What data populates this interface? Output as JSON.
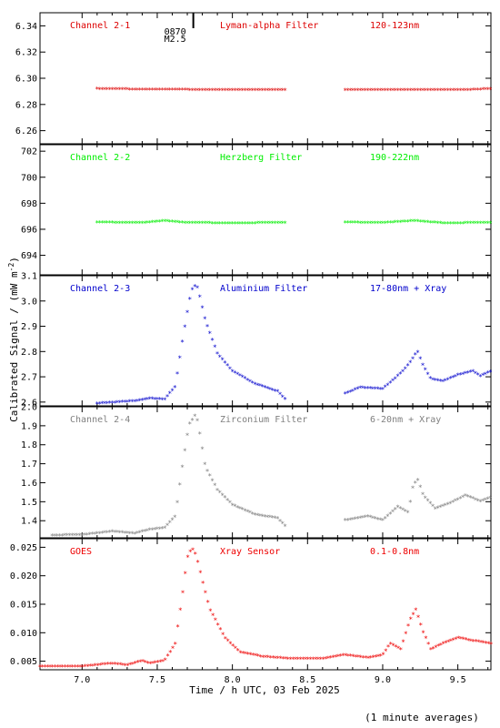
{
  "flare": {
    "id": "0870",
    "class": "M2.5",
    "time": 7.74
  },
  "xlabel": "Time / h UTC, 03 Feb 2025",
  "ylabel": "Calibrated Signal / (mW m",
  "ylabel_sup": "-2",
  "ylabel_close": ")",
  "footnote": "(1 minute averages)",
  "chart_data": [
    {
      "type": "scatter",
      "name": "Channel 2-1",
      "filter": "Lyman-alpha Filter",
      "band": "120-123nm",
      "color": "#dd0000",
      "xlim": [
        6.72,
        9.72
      ],
      "ylim": [
        6.25,
        6.35
      ],
      "yticks": [
        6.26,
        6.28,
        6.3,
        6.32,
        6.34
      ],
      "ytick_labels": [
        "6.26",
        "6.28",
        "6.30",
        "6.32",
        "6.34"
      ],
      "x": [
        7.1,
        7.4,
        7.7,
        8.0,
        8.35,
        8.75,
        9.0,
        9.3,
        9.6,
        9.72
      ],
      "y": [
        6.2915,
        6.291,
        6.2908,
        6.2906,
        6.2905,
        6.2905,
        6.2906,
        6.2905,
        6.2908,
        6.2915
      ]
    },
    {
      "type": "scatter",
      "name": "Channel 2-2",
      "filter": "Herzberg Filter",
      "band": "190-222nm",
      "color": "#00ee00",
      "xlim": [
        6.72,
        9.72
      ],
      "ylim": [
        692.5,
        702.5
      ],
      "yticks": [
        694,
        696,
        698,
        700,
        702
      ],
      "ytick_labels": [
        "694",
        "696",
        "698",
        "700",
        "702"
      ],
      "x": [
        7.1,
        7.4,
        7.55,
        7.7,
        8.0,
        8.35,
        8.75,
        9.0,
        9.22,
        9.4,
        9.72
      ],
      "y": [
        696.48,
        696.45,
        696.6,
        696.45,
        696.42,
        696.45,
        696.48,
        696.45,
        696.6,
        696.42,
        696.45
      ]
    },
    {
      "type": "scatter",
      "name": "Channel 2-3",
      "filter": "Aluminium Filter",
      "band": "17-80nm + Xray",
      "color": "#0000cc",
      "xlim": [
        6.72,
        9.72
      ],
      "ylim": [
        2.585,
        3.1
      ],
      "yticks": [
        2.6,
        2.7,
        2.8,
        2.9,
        3.0,
        3.1
      ],
      "ytick_labels": [
        "2.6",
        "2.7",
        "2.8",
        "2.9",
        "3.0",
        "3.1"
      ],
      "x": [
        7.1,
        7.25,
        7.35,
        7.45,
        7.55,
        7.62,
        7.67,
        7.71,
        7.74,
        7.77,
        7.82,
        7.9,
        8.0,
        8.15,
        8.3,
        8.35,
        8.75,
        8.85,
        9.0,
        9.08,
        9.15,
        9.2,
        9.23,
        9.27,
        9.32,
        9.4,
        9.5,
        9.6,
        9.65,
        9.72
      ],
      "y": [
        2.592,
        2.598,
        2.602,
        2.612,
        2.608,
        2.66,
        2.85,
        2.99,
        3.06,
        3.05,
        2.92,
        2.79,
        2.72,
        2.67,
        2.64,
        2.61,
        2.632,
        2.655,
        2.65,
        2.69,
        2.73,
        2.77,
        2.8,
        2.74,
        2.69,
        2.68,
        2.705,
        2.72,
        2.7,
        2.72
      ]
    },
    {
      "type": "scatter",
      "name": "Channel 2-4",
      "filter": "Zirconium Filter",
      "band": "6-20nm + Xray",
      "color": "#808080",
      "xlim": [
        6.72,
        9.72
      ],
      "ylim": [
        1.31,
        2.0
      ],
      "yticks": [
        1.4,
        1.5,
        1.6,
        1.7,
        1.8,
        1.9,
        2.0
      ],
      "ytick_labels": [
        "1.4",
        "1.5",
        "1.6",
        "1.7",
        "1.8",
        "1.9",
        "2.0"
      ],
      "x": [
        6.8,
        7.0,
        7.2,
        7.35,
        7.45,
        7.55,
        7.62,
        7.67,
        7.71,
        7.75,
        7.77,
        7.82,
        7.9,
        8.0,
        8.15,
        8.3,
        8.35,
        8.75,
        8.9,
        9.0,
        9.1,
        9.17,
        9.2,
        9.23,
        9.27,
        9.35,
        9.45,
        9.55,
        9.65,
        9.72
      ],
      "y": [
        1.32,
        1.322,
        1.34,
        1.33,
        1.35,
        1.36,
        1.42,
        1.7,
        1.9,
        1.95,
        1.92,
        1.68,
        1.56,
        1.48,
        1.43,
        1.41,
        1.37,
        1.4,
        1.42,
        1.4,
        1.47,
        1.44,
        1.57,
        1.62,
        1.53,
        1.46,
        1.49,
        1.53,
        1.5,
        1.52
      ]
    },
    {
      "type": "scatter",
      "name": "GOES",
      "filter": "Xray Sensor",
      "band": "0.1-0.8nm",
      "color": "#ee0000",
      "xlim": [
        6.72,
        9.72
      ],
      "ylim": [
        0.0035,
        0.0265
      ],
      "yticks": [
        0.005,
        0.01,
        0.015,
        0.02,
        0.025
      ],
      "ytick_labels": [
        "0.005",
        "0.010",
        "0.015",
        "0.020",
        "0.025"
      ],
      "x": [
        6.72,
        7.0,
        7.2,
        7.3,
        7.4,
        7.45,
        7.55,
        7.62,
        7.67,
        7.7,
        7.73,
        7.76,
        7.8,
        7.85,
        7.95,
        8.05,
        8.2,
        8.4,
        8.6,
        8.75,
        8.9,
        9.0,
        9.05,
        9.12,
        9.18,
        9.22,
        9.27,
        9.32,
        9.4,
        9.5,
        9.6,
        9.72
      ],
      "y": [
        0.004,
        0.004,
        0.0045,
        0.0042,
        0.005,
        0.0045,
        0.005,
        0.008,
        0.017,
        0.023,
        0.0248,
        0.0235,
        0.019,
        0.014,
        0.009,
        0.0065,
        0.0057,
        0.0053,
        0.0053,
        0.006,
        0.0055,
        0.006,
        0.008,
        0.007,
        0.012,
        0.014,
        0.01,
        0.007,
        0.008,
        0.009,
        0.0085,
        0.008
      ]
    }
  ],
  "xaxis": {
    "xlim": [
      6.72,
      9.72
    ],
    "ticks": [
      7.0,
      7.5,
      8.0,
      8.5,
      9.0,
      9.5
    ],
    "tick_labels": [
      "7.0",
      "7.5",
      "8.0",
      "8.5",
      "9.0",
      "9.5"
    ],
    "gap": [
      8.36,
      8.74
    ]
  }
}
